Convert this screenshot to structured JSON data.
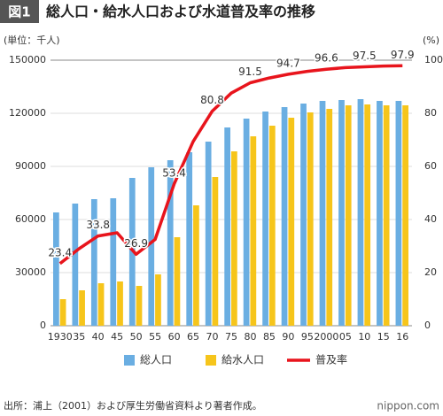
{
  "chart_data": {
    "type": "bar_line",
    "figure_label": "図1",
    "title": "総人口・給水人口および水道普及率の推移",
    "y_label": "(単位：千人)",
    "y2_label": "(%)",
    "categories": [
      "1930",
      "35",
      "40",
      "45",
      "50",
      "55",
      "60",
      "65",
      "70",
      "75",
      "80",
      "85",
      "90",
      "95",
      "2000",
      "05",
      "10",
      "15",
      "16"
    ],
    "series": [
      {
        "name": "総人口",
        "color": "#6aaee2",
        "type": "bar",
        "values": [
          64000,
          69000,
          71500,
          72000,
          83500,
          89500,
          93500,
          98000,
          104000,
          112000,
          117000,
          121000,
          123500,
          125500,
          127000,
          127500,
          128000,
          127000,
          127000
        ]
      },
      {
        "name": "給水人口",
        "color": "#f6c51b",
        "type": "bar",
        "values": [
          15000,
          20000,
          24000,
          25000,
          22500,
          29000,
          50000,
          68000,
          84000,
          98500,
          107000,
          113000,
          117500,
          120500,
          122500,
          124500,
          125000,
          124500,
          124500
        ]
      },
      {
        "name": "普及率",
        "color": "#e8141c",
        "type": "line",
        "axis": "y2",
        "values": [
          23.4,
          29,
          33.8,
          35,
          26.9,
          32.5,
          53.4,
          69.4,
          80.8,
          87.6,
          91.5,
          93.3,
          94.7,
          95.8,
          96.6,
          97.2,
          97.5,
          97.8,
          97.9
        ]
      }
    ],
    "ylim": [
      0,
      150000
    ],
    "yticks": [
      0,
      30000,
      60000,
      90000,
      120000,
      150000
    ],
    "y2lim": [
      0,
      100
    ],
    "y2ticks": [
      0,
      20,
      40,
      60,
      80,
      100
    ],
    "grid": true,
    "legend": "bottom",
    "source": "出所：浦上（2001）および厚生労働省資料より著者作成。",
    "credit": "nippon.com"
  }
}
